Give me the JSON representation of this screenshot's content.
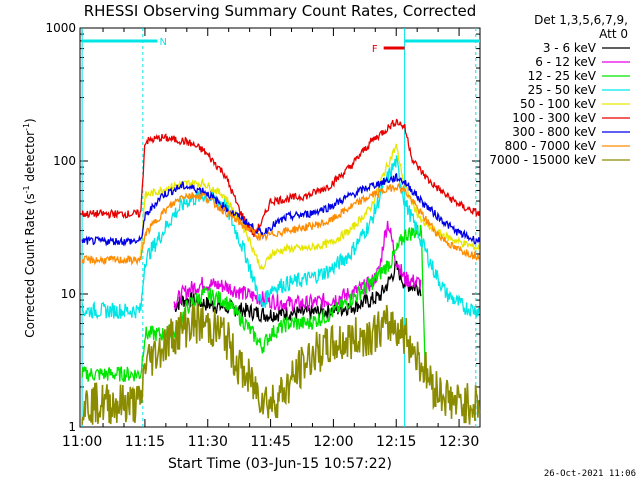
{
  "chart_data": {
    "type": "line",
    "title": "RHESSI Observing Summary Count Rates, Corrected",
    "xlabel": "Start Time (03-Jun-15 10:57:22)",
    "ylabel": "Corrected Count Rate (s",
    "ylabel_sup": "-1",
    "ylabel_tail": " detector",
    "ylabel_close": ")",
    "y_scale": "log",
    "ylim": [
      1,
      1000
    ],
    "xlim_minutes": [
      10.5,
      106
    ],
    "x_ticks": [
      {
        "label": "11:00",
        "minute": 11
      },
      {
        "label": "11:15",
        "minute": 26
      },
      {
        "label": "11:30",
        "minute": 41
      },
      {
        "label": "11:45",
        "minute": 56
      },
      {
        "label": "12:00",
        "minute": 71
      },
      {
        "label": "12:15",
        "minute": 86
      },
      {
        "label": "12:30",
        "minute": 101
      }
    ],
    "y_ticks": [
      {
        "label": "1",
        "value": 1
      },
      {
        "label": "10",
        "value": 10
      },
      {
        "label": "100",
        "value": 100
      },
      {
        "label": "1000",
        "value": 1000
      }
    ],
    "legend_header": [
      "Det 1,3,5,6,7,9,",
      "Att 0"
    ],
    "series": [
      {
        "name": "3 - 6 keV",
        "color": "#000000",
        "x": [
          33,
          35,
          37,
          40,
          45,
          50,
          55,
          60,
          65,
          70,
          75,
          80,
          82,
          84,
          86,
          88,
          92
        ],
        "y": [
          8,
          9,
          9,
          8.5,
          8,
          7.5,
          7,
          7.2,
          7.2,
          7.5,
          8,
          9,
          9.5,
          12,
          16,
          12,
          11
        ]
      },
      {
        "name": "6 - 12 keV",
        "color": "#e600e6",
        "x": [
          33,
          35,
          37,
          40,
          45,
          50,
          55,
          60,
          65,
          70,
          75,
          80,
          82,
          83,
          84,
          86,
          88,
          92
        ],
        "y": [
          8.5,
          10,
          11,
          12,
          11.5,
          10,
          9,
          8.5,
          8.5,
          9,
          10,
          12,
          15,
          25,
          35,
          18,
          13,
          12
        ]
      },
      {
        "name": "12 - 25 keV",
        "color": "#00e600",
        "x": [
          11,
          25,
          26,
          33,
          36,
          40,
          45,
          50,
          54,
          56,
          60,
          65,
          70,
          75,
          80,
          85,
          88,
          92,
          93
        ],
        "y": [
          2.5,
          2.5,
          5,
          5,
          8,
          10,
          9,
          6,
          4,
          5,
          6,
          6,
          7,
          9,
          12,
          18,
          28,
          30,
          2.5
        ]
      },
      {
        "name": "25 - 50 keV",
        "color": "#00e6e6",
        "x": [
          11,
          25,
          26,
          33,
          36,
          40,
          45,
          50,
          54,
          56,
          60,
          65,
          70,
          75,
          80,
          83,
          86,
          88,
          92,
          95,
          98,
          102,
          106
        ],
        "y": [
          7.5,
          7.5,
          18,
          40,
          50,
          55,
          48,
          20,
          8,
          11,
          12,
          13,
          15,
          20,
          35,
          65,
          100,
          50,
          25,
          15,
          10,
          8,
          7.5
        ]
      },
      {
        "name": "50 - 100 keV",
        "color": "#e6e600",
        "x": [
          25,
          26,
          33,
          36,
          40,
          45,
          50,
          54,
          56,
          60,
          65,
          70,
          75,
          80,
          83,
          86,
          88,
          92,
          95,
          98,
          102,
          106
        ],
        "y": [
          20,
          55,
          65,
          68,
          68,
          55,
          30,
          15,
          20,
          22,
          22,
          24,
          30,
          45,
          80,
          130,
          65,
          35,
          30,
          27,
          24,
          22
        ]
      },
      {
        "name": "100 - 300 keV",
        "color": "#e60000",
        "x": [
          11,
          25,
          26,
          30,
          36,
          40,
          45,
          49,
          52,
          54,
          56,
          60,
          65,
          70,
          75,
          80,
          86,
          88,
          90,
          94,
          98,
          102,
          106
        ],
        "y": [
          40,
          40,
          140,
          150,
          140,
          120,
          80,
          40,
          28,
          35,
          50,
          52,
          55,
          65,
          90,
          140,
          200,
          180,
          100,
          70,
          55,
          45,
          40
        ]
      },
      {
        "name": "300 - 800 keV",
        "color": "#0000e6",
        "x": [
          11,
          25,
          26,
          30,
          35,
          40,
          45,
          50,
          54,
          56,
          60,
          65,
          70,
          75,
          80,
          86,
          88,
          92,
          96,
          100,
          104,
          106
        ],
        "y": [
          25,
          25,
          38,
          55,
          65,
          60,
          45,
          35,
          28,
          32,
          38,
          40,
          45,
          55,
          65,
          75,
          70,
          50,
          38,
          30,
          26,
          25
        ]
      },
      {
        "name": "800 - 7000 keV",
        "color": "#ff8c00",
        "x": [
          11,
          25,
          26,
          30,
          35,
          40,
          45,
          50,
          54,
          56,
          60,
          65,
          70,
          75,
          80,
          86,
          88,
          92,
          96,
          100,
          104,
          106
        ],
        "y": [
          18,
          18,
          28,
          40,
          55,
          55,
          42,
          32,
          26,
          28,
          30,
          32,
          35,
          45,
          55,
          65,
          60,
          40,
          28,
          22,
          20,
          19
        ]
      },
      {
        "name": "7000 - 15000 keV",
        "color": "#8b8b00",
        "x": [
          11,
          25,
          26,
          30,
          33,
          37,
          40,
          45,
          48,
          52,
          56,
          60,
          64,
          66,
          70,
          75,
          80,
          85,
          88,
          92,
          95,
          100,
          106
        ],
        "y": [
          1.5,
          1.5,
          3,
          4,
          5,
          6,
          6,
          5,
          3,
          2,
          1.5,
          2,
          3,
          3.5,
          4,
          4.5,
          5,
          6,
          5,
          3,
          2,
          1.5,
          1.5
        ]
      }
    ],
    "annotations": [
      {
        "label": "N",
        "color": "#00e6e6",
        "x_start": 11,
        "x_end": 29
      },
      {
        "label": "F",
        "color": "#e60000",
        "x_start": 83,
        "x_end": 88
      },
      {
        "label": "",
        "color": "#00e6e6",
        "x_start": 88,
        "x_end": 106
      }
    ]
  },
  "footer_timestamp": "26-Oct-2021 11:06"
}
